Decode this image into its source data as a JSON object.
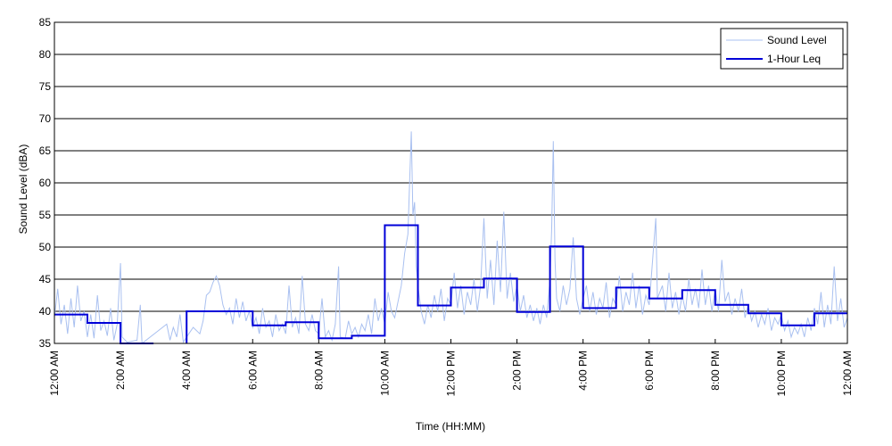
{
  "chart_data": {
    "type": "line",
    "xlabel": "Time (HH:MM)",
    "ylabel": "Sound Level (dBA)",
    "ylim": [
      35,
      85
    ],
    "yticks": [
      35,
      40,
      45,
      50,
      55,
      60,
      65,
      70,
      75,
      80,
      85
    ],
    "xlim": [
      0,
      24
    ],
    "xticks": [
      {
        "x": 0,
        "label": "12:00 AM"
      },
      {
        "x": 2,
        "label": "2:00 AM"
      },
      {
        "x": 4,
        "label": "4:00 AM"
      },
      {
        "x": 6,
        "label": "6:00 AM"
      },
      {
        "x": 8,
        "label": "8:00 AM"
      },
      {
        "x": 10,
        "label": "10:00 AM"
      },
      {
        "x": 12,
        "label": "12:00 PM"
      },
      {
        "x": 14,
        "label": "2:00 PM"
      },
      {
        "x": 16,
        "label": "4:00 PM"
      },
      {
        "x": 18,
        "label": "6:00 PM"
      },
      {
        "x": 20,
        "label": "8:00 PM"
      },
      {
        "x": 22,
        "label": "10:00 PM"
      },
      {
        "x": 24,
        "label": "12:00 AM"
      }
    ],
    "grid": "horizontal",
    "legend": {
      "position": "top-right"
    },
    "series": [
      {
        "name": "Sound Level",
        "color": "#a9c0f0",
        "style": "thin",
        "points": [
          [
            0.0,
            39.0
          ],
          [
            0.1,
            43.5
          ],
          [
            0.2,
            38.0
          ],
          [
            0.3,
            41.0
          ],
          [
            0.4,
            36.5
          ],
          [
            0.5,
            42.0
          ],
          [
            0.6,
            37.5
          ],
          [
            0.7,
            44.0
          ],
          [
            0.8,
            38.5
          ],
          [
            0.9,
            40.0
          ],
          [
            1.0,
            36.0
          ],
          [
            1.1,
            39.5
          ],
          [
            1.2,
            35.8
          ],
          [
            1.3,
            42.5
          ],
          [
            1.4,
            37.0
          ],
          [
            1.5,
            38.5
          ],
          [
            1.6,
            36.2
          ],
          [
            1.7,
            40.5
          ],
          [
            1.8,
            35.5
          ],
          [
            1.9,
            38.0
          ],
          [
            2.0,
            47.5
          ],
          [
            2.05,
            36.0
          ],
          [
            2.2,
            35.2
          ],
          [
            2.5,
            35.5
          ],
          [
            2.6,
            41.0
          ],
          [
            2.65,
            35.0
          ],
          [
            3.4,
            38.0
          ],
          [
            3.5,
            35.5
          ],
          [
            3.6,
            37.5
          ],
          [
            3.7,
            36.0
          ],
          [
            3.8,
            39.5
          ],
          [
            3.9,
            35.2
          ],
          [
            4.0,
            36.0
          ],
          [
            4.2,
            37.5
          ],
          [
            4.4,
            36.5
          ],
          [
            4.5,
            38.5
          ],
          [
            4.6,
            42.5
          ],
          [
            4.7,
            43.0
          ],
          [
            4.8,
            44.5
          ],
          [
            4.9,
            45.5
          ],
          [
            5.0,
            44.0
          ],
          [
            5.1,
            41.0
          ],
          [
            5.2,
            39.5
          ],
          [
            5.3,
            40.5
          ],
          [
            5.4,
            38.0
          ],
          [
            5.5,
            42.0
          ],
          [
            5.6,
            39.0
          ],
          [
            5.7,
            41.5
          ],
          [
            5.8,
            38.5
          ],
          [
            5.9,
            40.0
          ],
          [
            6.0,
            37.5
          ],
          [
            6.1,
            39.0
          ],
          [
            6.2,
            36.5
          ],
          [
            6.3,
            40.5
          ],
          [
            6.4,
            37.5
          ],
          [
            6.5,
            38.5
          ],
          [
            6.6,
            36.0
          ],
          [
            6.7,
            39.5
          ],
          [
            6.8,
            37.0
          ],
          [
            6.9,
            38.0
          ],
          [
            7.0,
            36.5
          ],
          [
            7.1,
            44.0
          ],
          [
            7.2,
            37.5
          ],
          [
            7.3,
            39.0
          ],
          [
            7.4,
            36.5
          ],
          [
            7.5,
            45.5
          ],
          [
            7.6,
            38.0
          ],
          [
            7.7,
            37.0
          ],
          [
            7.8,
            39.5
          ],
          [
            7.9,
            37.0
          ],
          [
            8.0,
            36.5
          ],
          [
            8.1,
            42.0
          ],
          [
            8.2,
            36.0
          ],
          [
            8.3,
            37.0
          ],
          [
            8.4,
            35.5
          ],
          [
            8.5,
            38.0
          ],
          [
            8.6,
            47.0
          ],
          [
            8.65,
            36.0
          ],
          [
            8.8,
            35.8
          ],
          [
            8.9,
            38.5
          ],
          [
            9.0,
            36.5
          ],
          [
            9.1,
            37.5
          ],
          [
            9.2,
            36.0
          ],
          [
            9.3,
            38.0
          ],
          [
            9.4,
            37.0
          ],
          [
            9.5,
            39.5
          ],
          [
            9.6,
            36.5
          ],
          [
            9.7,
            42.0
          ],
          [
            9.8,
            38.5
          ],
          [
            9.9,
            40.5
          ],
          [
            10.0,
            38.0
          ],
          [
            10.1,
            43.0
          ],
          [
            10.2,
            40.0
          ],
          [
            10.3,
            39.0
          ],
          [
            10.4,
            41.5
          ],
          [
            10.5,
            44.0
          ],
          [
            10.6,
            49.0
          ],
          [
            10.7,
            52.0
          ],
          [
            10.75,
            60.0
          ],
          [
            10.8,
            68.0
          ],
          [
            10.85,
            55.0
          ],
          [
            10.9,
            57.0
          ],
          [
            10.95,
            47.0
          ],
          [
            11.0,
            44.0
          ],
          [
            11.1,
            40.0
          ],
          [
            11.2,
            38.0
          ],
          [
            11.3,
            41.0
          ],
          [
            11.4,
            39.0
          ],
          [
            11.5,
            42.5
          ],
          [
            11.6,
            40.0
          ],
          [
            11.7,
            43.5
          ],
          [
            11.8,
            38.5
          ],
          [
            11.9,
            42.0
          ],
          [
            12.0,
            41.0
          ],
          [
            12.1,
            46.0
          ],
          [
            12.2,
            40.5
          ],
          [
            12.3,
            44.0
          ],
          [
            12.4,
            39.5
          ],
          [
            12.5,
            43.0
          ],
          [
            12.6,
            41.0
          ],
          [
            12.7,
            45.0
          ],
          [
            12.8,
            40.0
          ],
          [
            12.9,
            44.0
          ],
          [
            13.0,
            54.5
          ],
          [
            13.1,
            42.0
          ],
          [
            13.2,
            48.0
          ],
          [
            13.3,
            41.0
          ],
          [
            13.4,
            51.0
          ],
          [
            13.5,
            43.0
          ],
          [
            13.6,
            55.5
          ],
          [
            13.7,
            42.0
          ],
          [
            13.8,
            46.0
          ],
          [
            13.9,
            41.5
          ],
          [
            14.0,
            44.0
          ],
          [
            14.1,
            40.0
          ],
          [
            14.2,
            42.5
          ],
          [
            14.3,
            39.0
          ],
          [
            14.4,
            41.0
          ],
          [
            14.5,
            38.5
          ],
          [
            14.6,
            40.5
          ],
          [
            14.7,
            38.0
          ],
          [
            14.8,
            41.0
          ],
          [
            14.9,
            39.0
          ],
          [
            15.0,
            45.0
          ],
          [
            15.05,
            53.0
          ],
          [
            15.1,
            66.5
          ],
          [
            15.15,
            48.0
          ],
          [
            15.2,
            42.0
          ],
          [
            15.3,
            40.0
          ],
          [
            15.4,
            44.0
          ],
          [
            15.5,
            41.0
          ],
          [
            15.6,
            43.5
          ],
          [
            15.7,
            51.5
          ],
          [
            15.8,
            42.0
          ],
          [
            15.9,
            39.5
          ],
          [
            16.0,
            42.0
          ],
          [
            16.1,
            44.0
          ],
          [
            16.2,
            40.0
          ],
          [
            16.3,
            43.0
          ],
          [
            16.4,
            39.5
          ],
          [
            16.5,
            42.0
          ],
          [
            16.6,
            40.5
          ],
          [
            16.7,
            44.5
          ],
          [
            16.8,
            39.0
          ],
          [
            16.9,
            42.0
          ],
          [
            17.0,
            41.0
          ],
          [
            17.1,
            45.5
          ],
          [
            17.2,
            40.0
          ],
          [
            17.3,
            43.0
          ],
          [
            17.4,
            41.0
          ],
          [
            17.5,
            46.0
          ],
          [
            17.6,
            40.5
          ],
          [
            17.7,
            44.0
          ],
          [
            17.8,
            39.5
          ],
          [
            17.9,
            42.5
          ],
          [
            18.0,
            41.0
          ],
          [
            18.2,
            54.5
          ],
          [
            18.25,
            42.0
          ],
          [
            18.4,
            44.0
          ],
          [
            18.5,
            40.0
          ],
          [
            18.6,
            46.0
          ],
          [
            18.7,
            40.5
          ],
          [
            18.8,
            43.0
          ],
          [
            18.9,
            39.5
          ],
          [
            19.0,
            42.5
          ],
          [
            19.1,
            40.0
          ],
          [
            19.2,
            45.0
          ],
          [
            19.3,
            41.0
          ],
          [
            19.4,
            43.5
          ],
          [
            19.5,
            40.5
          ],
          [
            19.6,
            46.5
          ],
          [
            19.7,
            41.0
          ],
          [
            19.8,
            44.0
          ],
          [
            19.9,
            40.0
          ],
          [
            20.0,
            43.5
          ],
          [
            20.1,
            40.0
          ],
          [
            20.2,
            48.0
          ],
          [
            20.3,
            41.5
          ],
          [
            20.4,
            43.0
          ],
          [
            20.5,
            39.5
          ],
          [
            20.6,
            42.0
          ],
          [
            20.7,
            40.0
          ],
          [
            20.8,
            43.5
          ],
          [
            20.9,
            39.0
          ],
          [
            21.0,
            41.0
          ],
          [
            21.1,
            38.5
          ],
          [
            21.2,
            40.0
          ],
          [
            21.3,
            37.5
          ],
          [
            21.4,
            39.5
          ],
          [
            21.5,
            38.0
          ],
          [
            21.6,
            40.5
          ],
          [
            21.7,
            37.0
          ],
          [
            21.8,
            39.0
          ],
          [
            21.9,
            38.0
          ],
          [
            22.0,
            39.5
          ],
          [
            22.1,
            37.0
          ],
          [
            22.2,
            38.5
          ],
          [
            22.3,
            36.0
          ],
          [
            22.4,
            37.5
          ],
          [
            22.5,
            36.5
          ],
          [
            22.6,
            38.0
          ],
          [
            22.7,
            36.0
          ],
          [
            22.8,
            39.0
          ],
          [
            22.9,
            37.0
          ],
          [
            23.0,
            40.5
          ],
          [
            23.1,
            38.0
          ],
          [
            23.2,
            43.0
          ],
          [
            23.3,
            37.5
          ],
          [
            23.4,
            41.0
          ],
          [
            23.5,
            38.0
          ],
          [
            23.6,
            47.0
          ],
          [
            23.7,
            38.5
          ],
          [
            23.8,
            42.0
          ],
          [
            23.9,
            37.5
          ],
          [
            24.0,
            39.0
          ]
        ]
      },
      {
        "name": "1-Hour Leq",
        "color": "#0000d8",
        "style": "step",
        "hourly_values": [
          39.5,
          38.2,
          35.0,
          null,
          40.0,
          40.0,
          37.8,
          38.3,
          35.8,
          36.2,
          53.4,
          40.9,
          43.7,
          45.1,
          39.9,
          50.1,
          40.5,
          43.7,
          42.0,
          43.3,
          41.0,
          39.7,
          37.8,
          39.7
        ]
      }
    ]
  }
}
